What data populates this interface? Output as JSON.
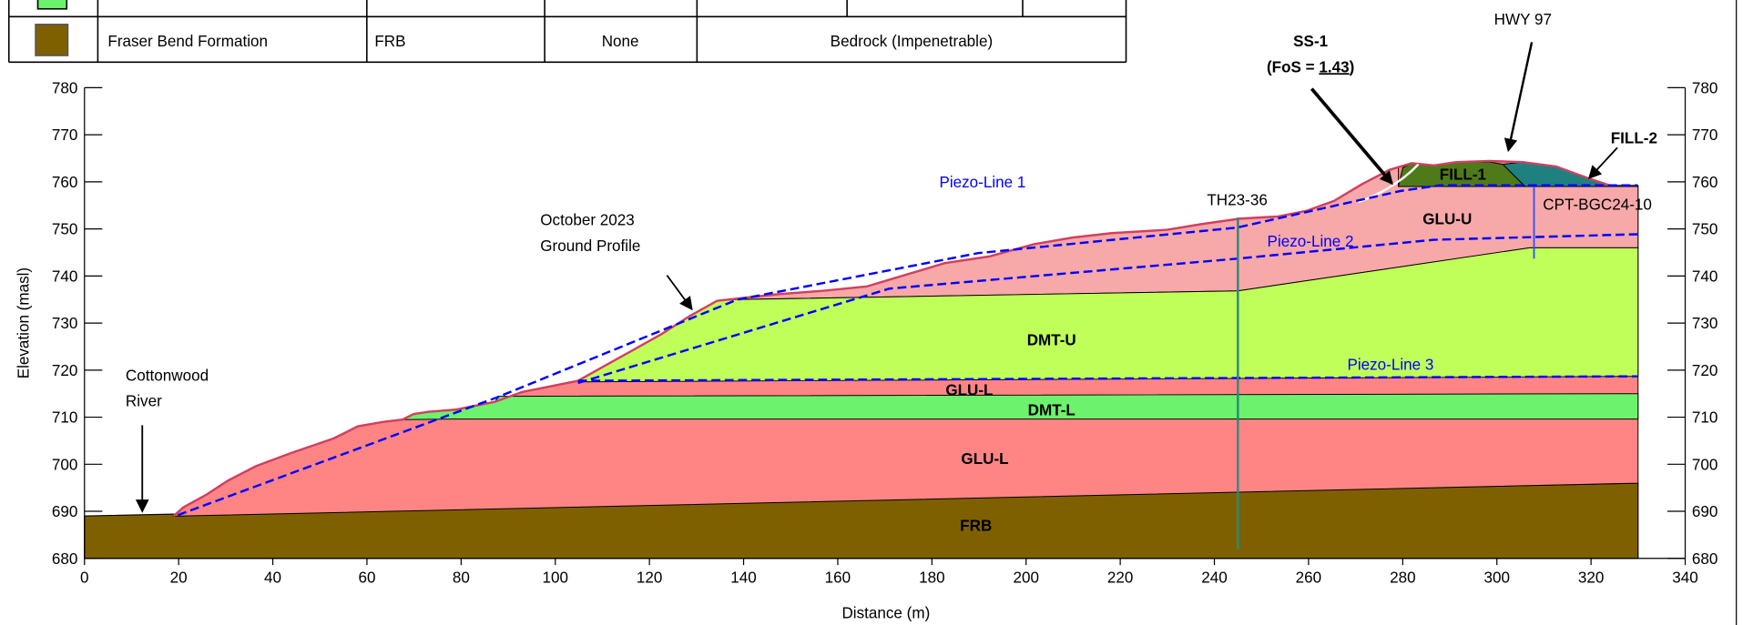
{
  "legend_table": {
    "rows": [
      {
        "name": "Fraser Bend Formation",
        "code": "FRB",
        "strength": "None",
        "description": "Bedrock (Impenetrable)"
      }
    ]
  },
  "axes": {
    "x_label": "Distance (m)",
    "y_label": "Elevation (masl)",
    "xlim": [
      0,
      340
    ],
    "ylim": [
      680,
      780
    ],
    "xticks": [
      0,
      20,
      40,
      60,
      80,
      100,
      120,
      140,
      160,
      180,
      200,
      220,
      240,
      260,
      280,
      300,
      320,
      340
    ],
    "yticks": [
      680,
      690,
      700,
      710,
      720,
      730,
      740,
      750,
      760,
      770,
      780
    ]
  },
  "layer_labels": {
    "frb": "FRB",
    "glu_l_lower": "GLU-L",
    "dmt_l": "DMT-L",
    "glu_l_upper": "GLU-L",
    "dmt_u": "DMT-U",
    "glu_u": "GLU-U",
    "fill_1": "FILL-1",
    "fill_2": "FILL-2"
  },
  "annotations": {
    "river": [
      "Cottonwood",
      "River"
    ],
    "ground_profile": [
      "October 2023",
      "Ground Profile"
    ],
    "ss1_title": "SS-1",
    "ss1_fos_prefix": "(FoS = ",
    "ss1_fos": "1.43",
    "ss1_fos_suffix": ")",
    "highway": "HWY 97",
    "borehole": "TH23-36",
    "cpt": "CPT-BGC24-10",
    "piezo_1": "Piezo-Line 1",
    "piezo_2": "Piezo-Line 2",
    "piezo_3": "Piezo-Line 3"
  }
}
